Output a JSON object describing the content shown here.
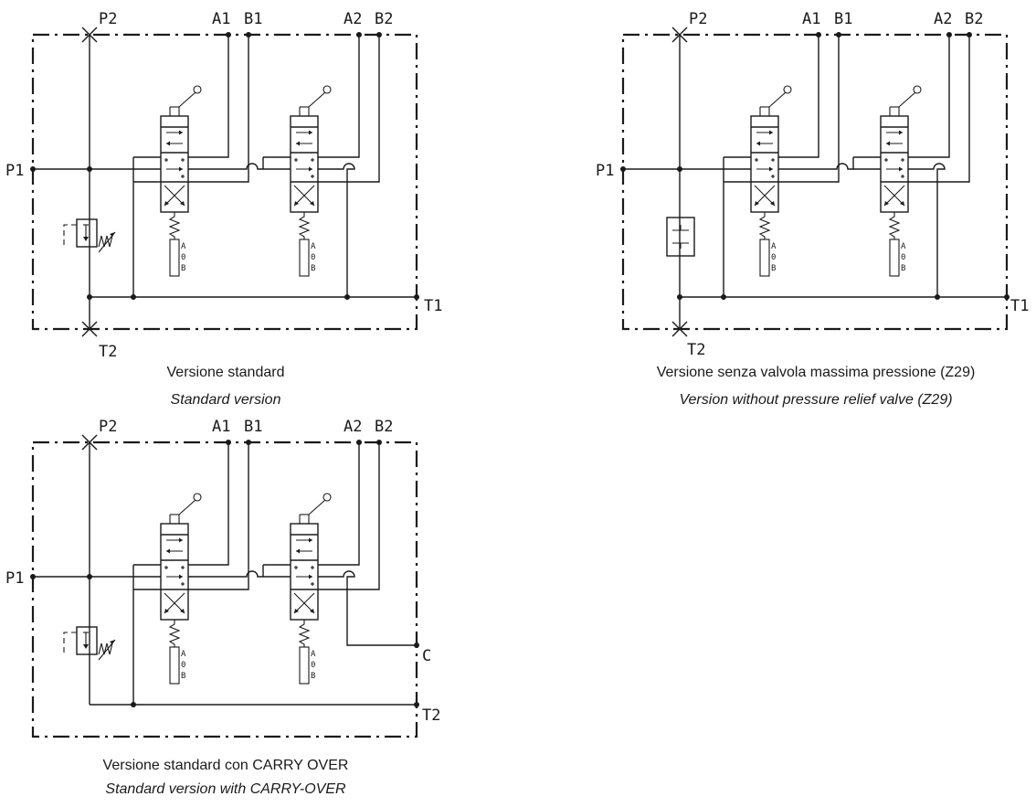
{
  "panels": [
    {
      "ports": {
        "p2": "P2",
        "a1": "A1",
        "b1": "B1",
        "a2": "A2",
        "b2": "B2",
        "p1": "P1",
        "t1": "T1",
        "t2": "T2"
      },
      "caption_it": "Versione standard",
      "caption_en": "Standard version"
    },
    {
      "ports": {
        "p2": "P2",
        "a1": "A1",
        "b1": "B1",
        "a2": "A2",
        "b2": "B2",
        "p1": "P1",
        "t1": "T1",
        "t2": "T2"
      },
      "caption_it": "Versione senza valvola massima pressione (Z29)",
      "caption_en": "Version without pressure relief valve (Z29)"
    },
    {
      "ports": {
        "p2": "P2",
        "a1": "A1",
        "b1": "B1",
        "a2": "A2",
        "b2": "B2",
        "p1": "P1",
        "c": "C",
        "t2": "T2"
      },
      "caption_it": "Versione standard con CARRY OVER",
      "caption_en": "Standard version with CARRY-OVER"
    }
  ],
  "spool_positions": [
    "A",
    "0",
    "B"
  ]
}
